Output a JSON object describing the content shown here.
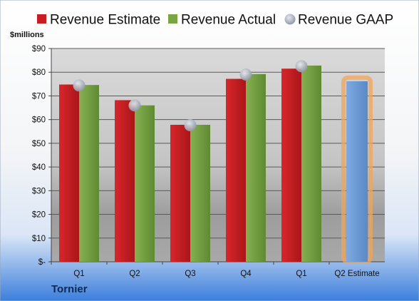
{
  "chart_data": {
    "type": "bar",
    "company": "Tornier",
    "unit_label": "$millions",
    "categories": [
      "Q1",
      "Q2",
      "Q3",
      "Q4",
      "Q1",
      "Q2 Estimate"
    ],
    "series": [
      {
        "name": "Revenue Estimate",
        "color": "#c81e22",
        "values": [
          74.8,
          68.2,
          57.8,
          77.2,
          81.5,
          null
        ]
      },
      {
        "name": "Revenue Actual",
        "color": "#79a545",
        "values": [
          74.6,
          66.0,
          57.8,
          79.2,
          82.8,
          null
        ]
      },
      {
        "name": "Revenue GAAP",
        "color": "#a0a6b2",
        "values": [
          74.4,
          66.0,
          57.6,
          79.0,
          82.5,
          null
        ]
      }
    ],
    "forecast": {
      "category": "Q2 Estimate",
      "value": 76.2,
      "color": "#6a9bd3",
      "highlight": "#f0a55a"
    },
    "ylim": [
      0,
      90
    ],
    "yticks": [
      0,
      10,
      20,
      30,
      40,
      50,
      60,
      70,
      80,
      90
    ],
    "ytick_labels": [
      "$-",
      "$10",
      "$20",
      "$30",
      "$40",
      "$50",
      "$60",
      "$70",
      "$80",
      "$90"
    ],
    "legend_position": "top",
    "grid": true
  }
}
